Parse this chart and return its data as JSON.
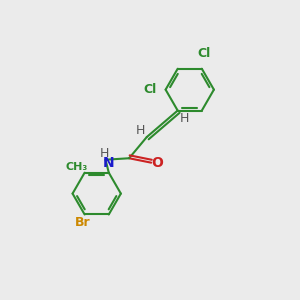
{
  "background_color": "#ebebeb",
  "bond_color": "#2d8a2d",
  "atom_colors": {
    "Cl": "#2d8a2d",
    "Br": "#cc8800",
    "N": "#1a1acc",
    "O": "#cc2222",
    "H": "#555555",
    "C": "#2d8a2d"
  },
  "font_size": 9,
  "lw": 1.5,
  "ring_r": 0.82
}
